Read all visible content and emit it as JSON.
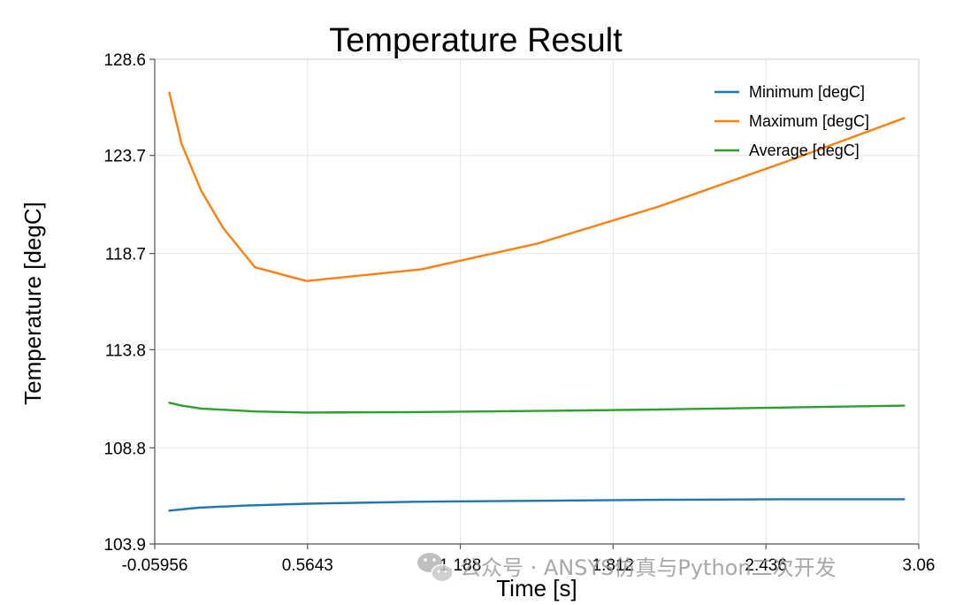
{
  "chart_data": {
    "type": "line",
    "title": "Temperature Result",
    "xlabel": "Time [s]",
    "ylabel": "Temperature [degC]",
    "xlim": [
      -0.05956,
      3.06
    ],
    "ylim": [
      103.9,
      128.6
    ],
    "xticks": [
      -0.05956,
      0.5643,
      1.188,
      1.812,
      2.436,
      3.06
    ],
    "xtick_labels": [
      "-0.05956",
      "0.5643",
      "1.188",
      "1.812",
      "2.436",
      "3.06"
    ],
    "yticks": [
      103.9,
      108.8,
      113.8,
      118.7,
      123.7,
      128.6
    ],
    "ytick_labels": [
      "103.9",
      "108.8",
      "113.8",
      "118.7",
      "123.7",
      "128.6"
    ],
    "grid": true,
    "legend": "top-right",
    "series": [
      {
        "name": "Minimum [degC]",
        "color": "#1f77b4",
        "x": [
          0.0,
          0.12,
          0.3,
          0.56,
          1.0,
          1.5,
          2.0,
          2.5,
          3.0
        ],
        "y": [
          105.6,
          105.75,
          105.85,
          105.95,
          106.05,
          106.1,
          106.15,
          106.18,
          106.18
        ]
      },
      {
        "name": "Maximum [degC]",
        "color": "#ff7f0e",
        "x": [
          0.0,
          0.05,
          0.13,
          0.22,
          0.35,
          0.56,
          1.03,
          1.5,
          2.0,
          2.5,
          3.0
        ],
        "y": [
          126.9,
          124.3,
          121.9,
          120.0,
          118.0,
          117.3,
          117.9,
          119.2,
          121.1,
          123.3,
          125.6
        ]
      },
      {
        "name": "Average [degC]",
        "color": "#2ca02c",
        "x": [
          0.0,
          0.05,
          0.13,
          0.35,
          0.56,
          1.0,
          1.5,
          2.0,
          2.5,
          3.0
        ],
        "y": [
          111.1,
          110.95,
          110.8,
          110.65,
          110.6,
          110.62,
          110.68,
          110.75,
          110.85,
          110.95
        ]
      }
    ]
  },
  "watermark": {
    "icon": "wechat-icon",
    "text": "公众号 · ANSYS仿真与Python二次开发"
  }
}
